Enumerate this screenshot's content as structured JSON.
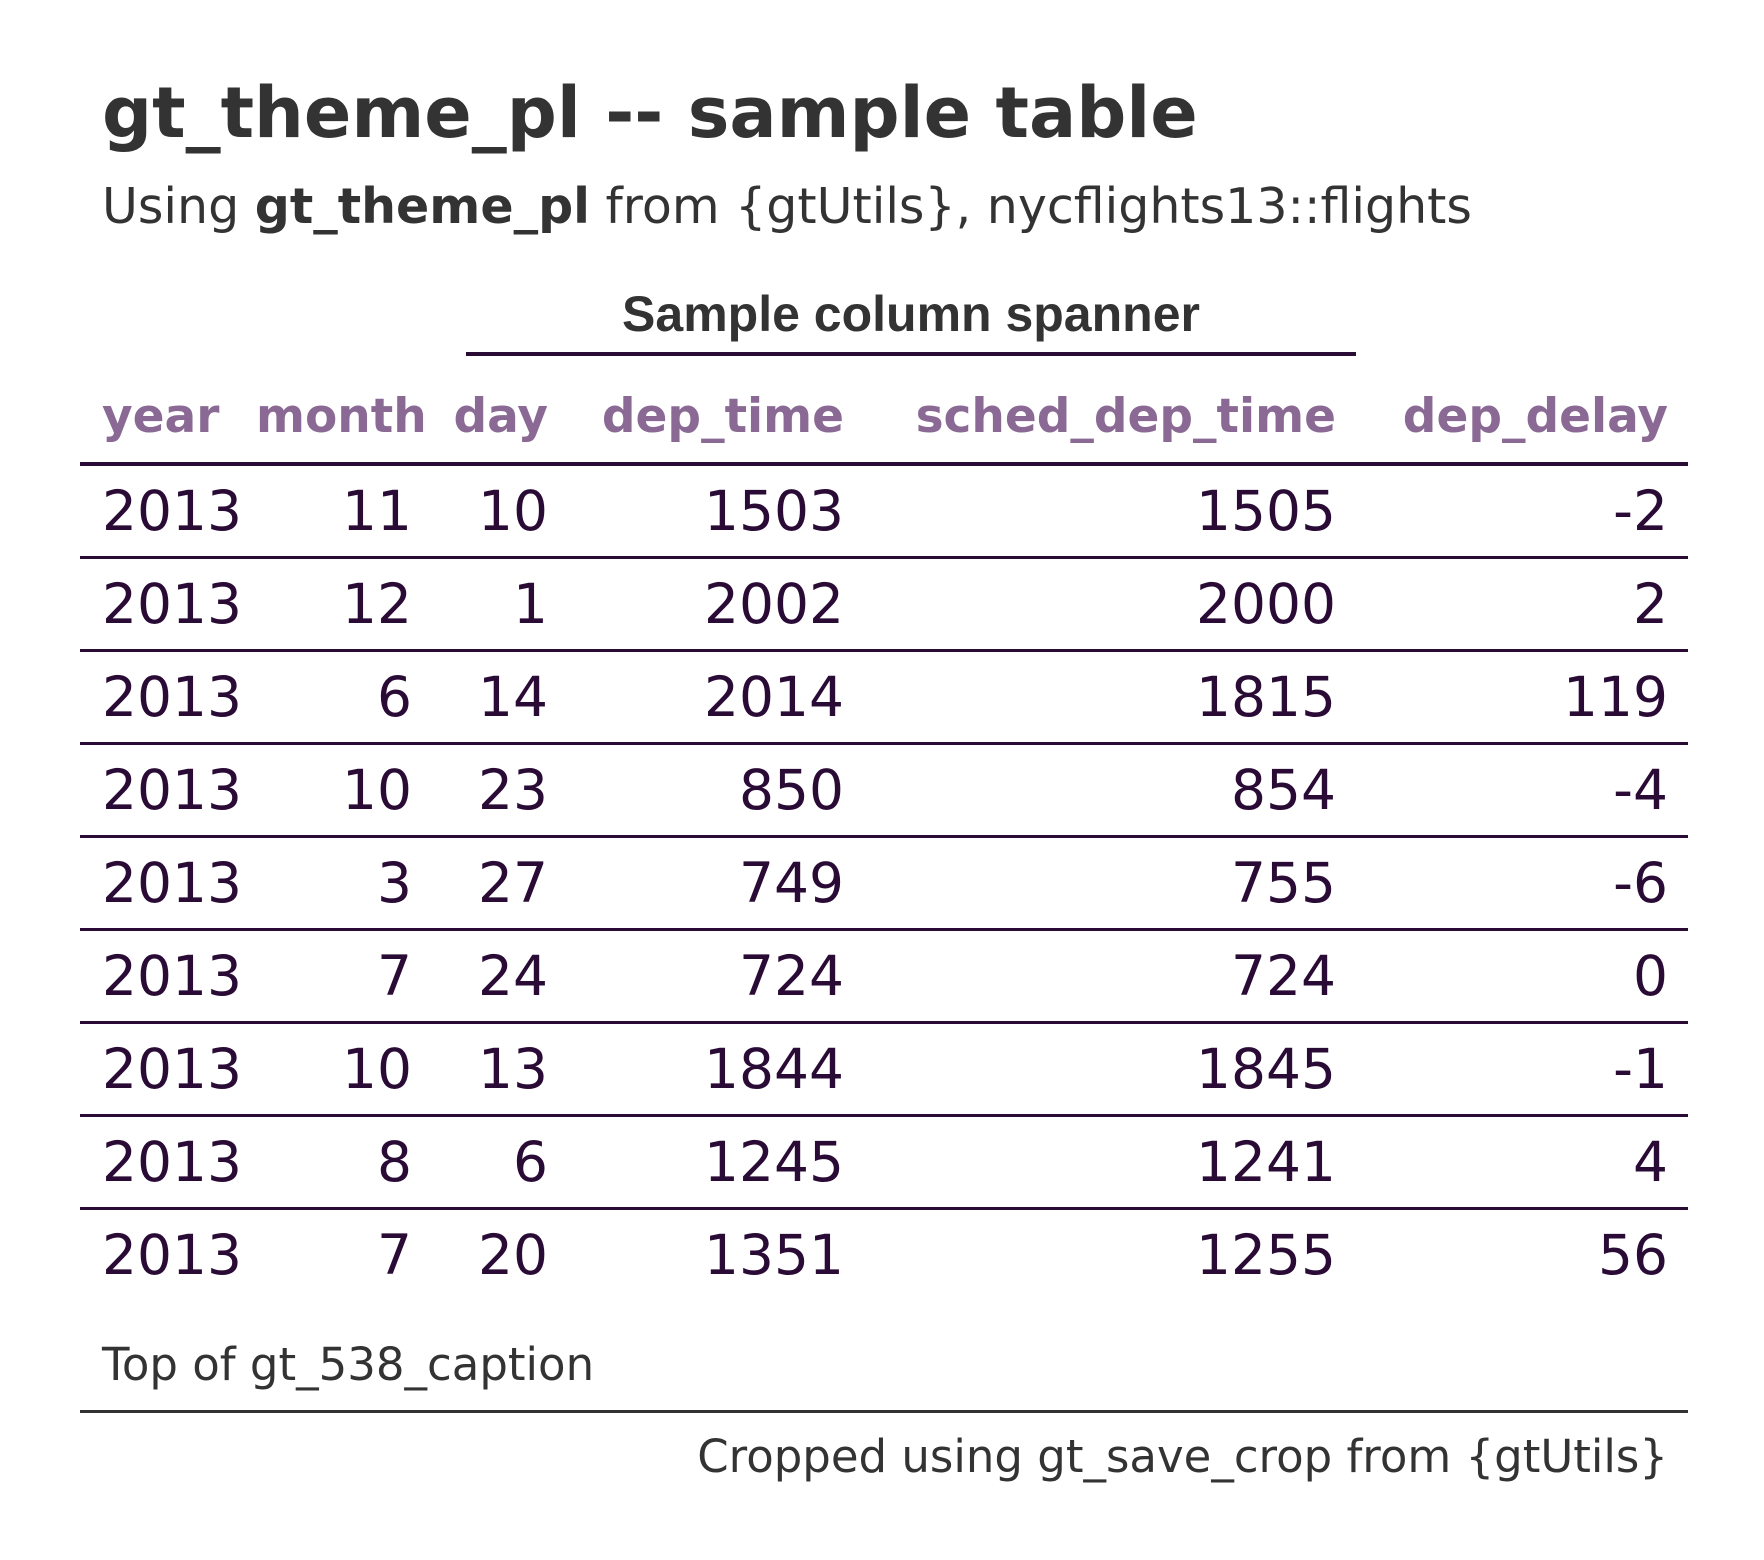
{
  "title": "gt_theme_pl -- sample table",
  "subtitle": {
    "prefix": "Using ",
    "bold": "gt_theme_pl",
    "suffix": " from {gtUtils}, nycflights13::flights"
  },
  "spanner": "Sample column spanner",
  "columns": [
    "year",
    "month",
    "day",
    "dep_time",
    "sched_dep_time",
    "dep_delay"
  ],
  "rows": [
    [
      "2013",
      "11",
      "10",
      "1503",
      "1505",
      "-2"
    ],
    [
      "2013",
      "12",
      "1",
      "2002",
      "2000",
      "2"
    ],
    [
      "2013",
      "6",
      "14",
      "2014",
      "1815",
      "119"
    ],
    [
      "2013",
      "10",
      "23",
      "850",
      "854",
      "-4"
    ],
    [
      "2013",
      "3",
      "27",
      "749",
      "755",
      "-6"
    ],
    [
      "2013",
      "7",
      "24",
      "724",
      "724",
      "0"
    ],
    [
      "2013",
      "10",
      "13",
      "1844",
      "1845",
      "-1"
    ],
    [
      "2013",
      "8",
      "6",
      "1245",
      "1241",
      "4"
    ],
    [
      "2013",
      "7",
      "20",
      "1351",
      "1255",
      "56"
    ]
  ],
  "caption": "Top of gt_538_caption",
  "source_note": "Cropped using gt_save_crop from {gtUtils}",
  "colors": {
    "header_text": "#8a6a94",
    "body_text": "#2a0b36",
    "rules": "#2a0b36",
    "title_text": "#333333"
  }
}
